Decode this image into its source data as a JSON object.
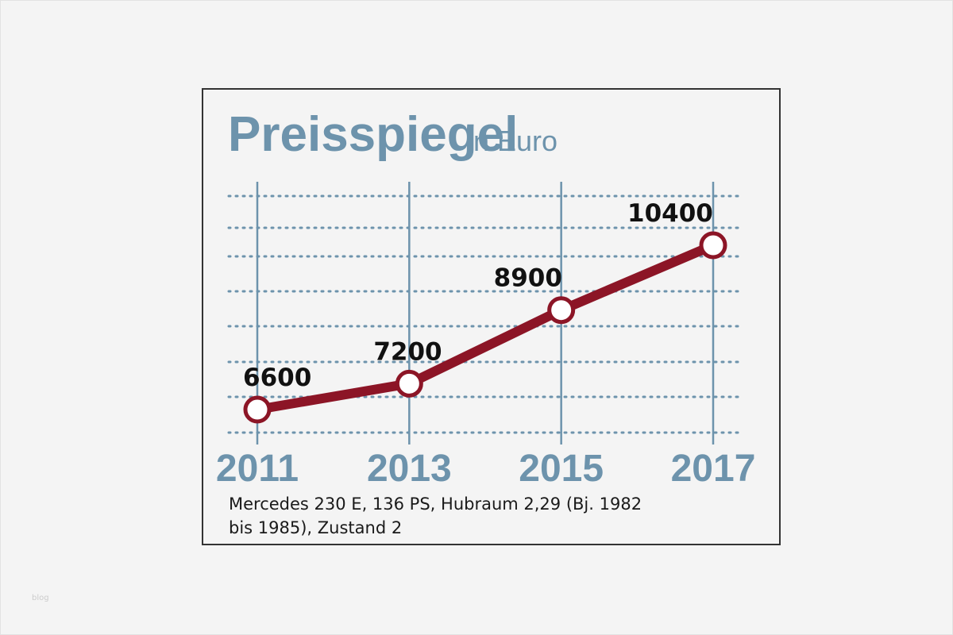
{
  "chart_data": {
    "type": "line",
    "title": "Preisspiegel",
    "subtitle": "in Euro",
    "x": [
      "2011",
      "2013",
      "2015",
      "2017"
    ],
    "series": [
      {
        "values": [
          6600,
          7200,
          8900,
          10400
        ]
      }
    ],
    "data_labels": [
      "6600",
      "7200",
      "8900",
      "10400"
    ],
    "xlabel": "",
    "ylabel": "",
    "grid": true,
    "colors": {
      "line": "#8c1526",
      "marker_fill": "#ffffff",
      "title": "#6d93ac",
      "grid": "#6d93ac"
    }
  },
  "caption": {
    "line1": "Mercedes 230 E, 136 PS, Hubraum 2,29 (Bj. 1982",
    "line2": "bis 1985), Zustand 2"
  },
  "watermark": "blog"
}
